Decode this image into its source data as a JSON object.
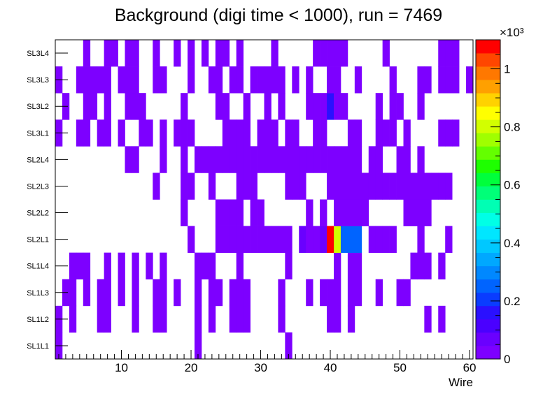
{
  "chart_data": {
    "type": "heatmap",
    "title": "Background (digi time < 1000), run = 7469",
    "xlabel": "Wire",
    "ylabel": "",
    "x_bin_range": [
      0.5,
      60.5
    ],
    "xlim": [
      0,
      60
    ],
    "x_ticks": [
      10,
      20,
      30,
      40,
      50,
      60
    ],
    "y_categories": [
      "SL1L1",
      "SL1L2",
      "SL1L3",
      "SL1L4",
      "SL2L1",
      "SL2L2",
      "SL2L3",
      "SL2L4",
      "SL3L1",
      "SL3L2",
      "SL3L3",
      "SL3L4"
    ],
    "grid": false,
    "colorbar": {
      "min": 0,
      "max": 1100,
      "exponent_label": "×10³",
      "tick_values": [
        0,
        200,
        400,
        600,
        800,
        1000
      ],
      "tick_labels": [
        "0",
        "0.2",
        "0.4",
        "0.6",
        "0.8",
        "1"
      ],
      "palette": [
        "#7d00ff",
        "#6a00ff",
        "#4a00ff",
        "#2a10ff",
        "#0a3cff",
        "#0064ff",
        "#0088ff",
        "#00a8ff",
        "#00c8ff",
        "#00e6ff",
        "#00ffe6",
        "#00ffb4",
        "#00ff78",
        "#00ff3c",
        "#1eff00",
        "#64ff00",
        "#a0ff00",
        "#d2ff00",
        "#ffff00",
        "#ffd200",
        "#ffa000",
        "#ff7800",
        "#ff4600",
        "#ff0000"
      ]
    },
    "base_value": 20,
    "cells": {
      "SL1L1": [
        [
          1,
          1
        ],
        [
          21,
          21
        ],
        [
          34,
          34
        ]
      ],
      "SL1L2": [
        [
          1,
          1
        ],
        [
          3,
          3
        ],
        [
          7,
          8
        ],
        [
          12,
          12
        ],
        [
          15,
          16
        ],
        [
          21,
          21
        ],
        [
          23,
          23
        ],
        [
          26,
          28
        ],
        [
          33,
          33
        ],
        [
          40,
          41
        ],
        [
          43,
          43
        ],
        [
          54,
          54
        ],
        [
          56,
          56
        ]
      ],
      "SL1L3": [
        [
          2,
          3
        ],
        [
          5,
          5
        ],
        [
          7,
          8
        ],
        [
          10,
          10
        ],
        [
          12,
          12
        ],
        [
          15,
          16
        ],
        [
          18,
          18
        ],
        [
          21,
          21
        ],
        [
          23,
          24
        ],
        [
          26,
          28
        ],
        [
          33,
          33
        ],
        [
          37,
          37
        ],
        [
          39,
          41
        ],
        [
          43,
          44
        ],
        [
          47,
          47
        ],
        [
          50,
          51
        ]
      ],
      "SL1L4": [
        [
          3,
          5
        ],
        [
          8,
          8
        ],
        [
          10,
          10
        ],
        [
          12,
          12
        ],
        [
          14,
          14
        ],
        [
          16,
          16
        ],
        [
          21,
          23
        ],
        [
          27,
          27
        ],
        [
          34,
          34
        ],
        [
          41,
          41
        ],
        [
          43,
          44
        ],
        [
          52,
          54
        ],
        [
          56,
          56
        ]
      ],
      "SL2L1": [
        [
          20,
          20
        ],
        [
          24,
          34
        ],
        [
          37,
          39
        ],
        [
          42,
          42
        ],
        [
          46,
          49
        ],
        [
          53,
          53
        ],
        [
          57,
          57
        ]
      ],
      "SL2L2": [
        [
          19,
          19
        ],
        [
          24,
          27
        ],
        [
          29,
          30
        ],
        [
          37,
          37
        ],
        [
          39,
          39
        ],
        [
          41,
          45
        ],
        [
          51,
          54
        ]
      ],
      "SL2L3": [
        [
          15,
          15
        ],
        [
          19,
          20
        ],
        [
          23,
          23
        ],
        [
          27,
          29
        ],
        [
          34,
          36
        ],
        [
          40,
          57
        ]
      ],
      "SL2L4": [
        [
          11,
          12
        ],
        [
          16,
          16
        ],
        [
          19,
          19
        ],
        [
          21,
          44
        ],
        [
          46,
          47
        ],
        [
          50,
          51
        ],
        [
          53,
          53
        ]
      ],
      "SL3L1": [
        [
          1,
          1
        ],
        [
          4,
          5
        ],
        [
          7,
          8
        ],
        [
          10,
          10
        ],
        [
          13,
          14
        ],
        [
          16,
          16
        ],
        [
          18,
          20
        ],
        [
          25,
          28
        ],
        [
          30,
          32
        ],
        [
          34,
          35
        ],
        [
          38,
          39
        ],
        [
          43,
          44
        ],
        [
          47,
          49
        ],
        [
          51,
          51
        ],
        [
          56,
          58
        ]
      ],
      "SL3L2": [
        [
          2,
          2
        ],
        [
          5,
          6
        ],
        [
          8,
          8
        ],
        [
          11,
          13
        ],
        [
          19,
          19
        ],
        [
          24,
          25
        ],
        [
          28,
          28
        ],
        [
          31,
          31
        ],
        [
          33,
          33
        ],
        [
          37,
          39
        ],
        [
          41,
          42
        ],
        [
          47,
          47
        ],
        [
          49,
          50
        ],
        [
          53,
          53
        ]
      ],
      "SL3L3": [
        [
          1,
          1
        ],
        [
          4,
          8
        ],
        [
          10,
          12
        ],
        [
          15,
          16
        ],
        [
          20,
          20
        ],
        [
          23,
          24
        ],
        [
          26,
          27
        ],
        [
          29,
          33
        ],
        [
          35,
          35
        ],
        [
          37,
          37
        ],
        [
          40,
          41
        ],
        [
          44,
          44
        ],
        [
          49,
          49
        ],
        [
          53,
          54
        ],
        [
          56,
          58
        ],
        [
          60,
          60
        ]
      ],
      "SL3L4": [
        [
          5,
          5
        ],
        [
          8,
          9
        ],
        [
          11,
          12
        ],
        [
          15,
          15
        ],
        [
          18,
          18
        ],
        [
          20,
          20
        ],
        [
          22,
          22
        ],
        [
          24,
          25
        ],
        [
          27,
          27
        ],
        [
          32,
          32
        ],
        [
          38,
          42
        ],
        [
          48,
          48
        ],
        [
          56,
          58
        ]
      ]
    },
    "hot_cells": [
      {
        "layer": "SL2L1",
        "wire": 40,
        "value": 1080
      },
      {
        "layer": "SL2L1",
        "wire": 41,
        "value": 820
      },
      {
        "layer": "SL2L1",
        "wire": 42,
        "value": 260
      },
      {
        "layer": "SL2L1",
        "wire": 43,
        "value": 260
      },
      {
        "layer": "SL2L1",
        "wire": 44,
        "value": 260
      },
      {
        "layer": "SL2L1",
        "wire": 36,
        "value": 90
      },
      {
        "layer": "SL2L1",
        "wire": 39,
        "value": 60
      },
      {
        "layer": "SL3L2",
        "wire": 40,
        "value": 140
      }
    ]
  }
}
